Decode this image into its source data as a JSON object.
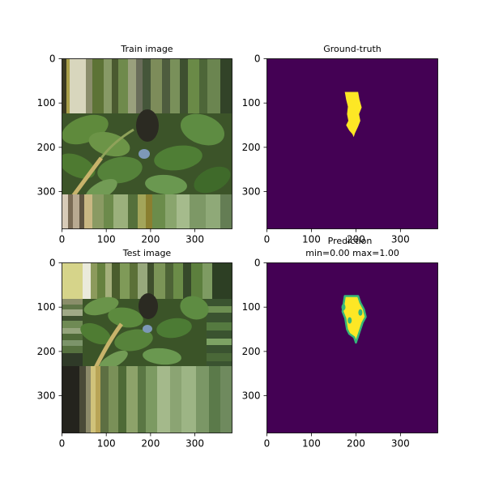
{
  "chart_data": [
    {
      "type": "image",
      "title": "Train image",
      "xlim": [
        0,
        384
      ],
      "ylim": [
        384,
        0
      ],
      "xticks": [
        0,
        100,
        200,
        300
      ],
      "yticks": [
        0,
        100,
        200,
        300
      ],
      "content": "photo of green leaves with a bird, edges stretched into vertical stripes"
    },
    {
      "type": "heatmap",
      "title": "Ground-truth",
      "xlim": [
        0,
        384
      ],
      "ylim": [
        384,
        0
      ],
      "xticks": [
        0,
        100,
        200,
        300
      ],
      "yticks": [
        0,
        100,
        200,
        300
      ],
      "colormap": "viridis",
      "background_color": "#440154",
      "mask_color": "#fde725",
      "mask_outline": [
        [
          175,
          75
        ],
        [
          205,
          75
        ],
        [
          208,
          92
        ],
        [
          213,
          110
        ],
        [
          207,
          125
        ],
        [
          210,
          140
        ],
        [
          205,
          153
        ],
        [
          198,
          168
        ],
        [
          195,
          177
        ],
        [
          192,
          170
        ],
        [
          185,
          162
        ],
        [
          178,
          150
        ],
        [
          183,
          140
        ],
        [
          180,
          125
        ],
        [
          182,
          108
        ],
        [
          178,
          92
        ]
      ]
    },
    {
      "type": "image",
      "title": "Test image",
      "xlim": [
        0,
        384
      ],
      "ylim": [
        384,
        0
      ],
      "xticks": [
        0,
        100,
        200,
        300
      ],
      "yticks": [
        0,
        100,
        200,
        300
      ],
      "content": "same leaf/bird photo, shifted, edges stretched into vertical stripes"
    },
    {
      "type": "heatmap",
      "title": "Prediction",
      "subtitle": "min=0.00 max=1.00",
      "xlim": [
        0,
        384
      ],
      "ylim": [
        384,
        0
      ],
      "xticks": [
        0,
        100,
        200,
        300
      ],
      "yticks": [
        0,
        100,
        200,
        300
      ],
      "colormap": "viridis",
      "background_color": "#440154",
      "mask_color": "#fde725",
      "edge_color": "#35b779",
      "mask_outline": [
        [
          175,
          75
        ],
        [
          205,
          75
        ],
        [
          210,
          90
        ],
        [
          218,
          105
        ],
        [
          222,
          122
        ],
        [
          215,
          135
        ],
        [
          210,
          150
        ],
        [
          205,
          165
        ],
        [
          200,
          180
        ],
        [
          196,
          168
        ],
        [
          185,
          160
        ],
        [
          180,
          150
        ],
        [
          178,
          138
        ],
        [
          176,
          125
        ],
        [
          170,
          110
        ],
        [
          172,
          95
        ]
      ],
      "edge_blobs": [
        [
          172,
          100
        ],
        [
          210,
          112
        ],
        [
          186,
          130
        ]
      ]
    }
  ]
}
